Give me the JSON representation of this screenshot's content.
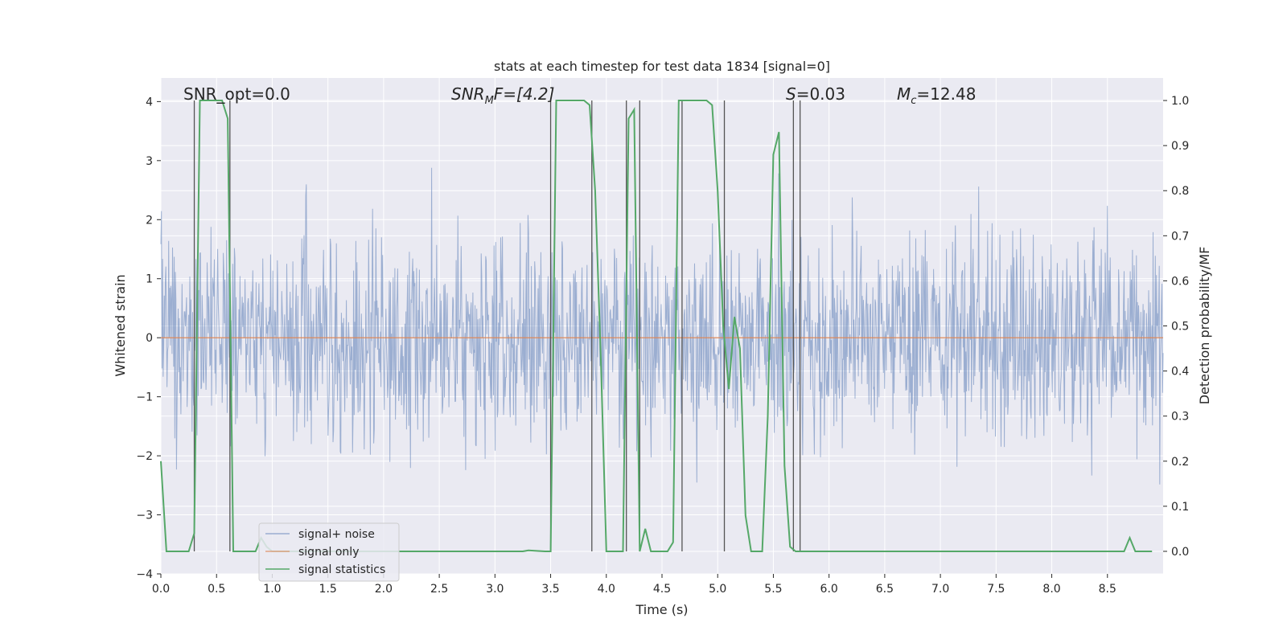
{
  "chart_data": {
    "type": "line",
    "title": "stats at each timestep for test data 1834 [signal=0]",
    "xlabel": "Time (s)",
    "ylabel": "Whitened strain",
    "ylabel_right": "Detection probability/MF",
    "xlim": [
      0.0,
      9.0
    ],
    "ylim": [
      -4.0,
      4.4
    ],
    "ylim_right": [
      -0.05,
      1.05
    ],
    "xticks": [
      "0.0",
      "0.5",
      "1.0",
      "1.5",
      "2.0",
      "2.5",
      "3.0",
      "3.5",
      "4.0",
      "4.5",
      "5.0",
      "5.5",
      "6.0",
      "6.5",
      "7.0",
      "7.5",
      "8.0",
      "8.5"
    ],
    "yticks": [
      "4",
      "3",
      "2",
      "1",
      "0",
      "−1",
      "−2",
      "−3",
      "−4"
    ],
    "yticks_right": [
      "1.0",
      "0.9",
      "0.8",
      "0.7",
      "0.6",
      "0.5",
      "0.4",
      "0.3",
      "0.2",
      "0.1",
      "0.0"
    ],
    "annotations": {
      "snr_opt": "SNR_opt=0.0",
      "snr_mf_base": "SNR",
      "snr_mf_sub": "M",
      "snr_mf_rest": "F=[4.2]",
      "s_label_italic": "S",
      "s_label_rest": "=0.03",
      "mc_base": "M",
      "mc_sub": "c",
      "mc_rest": "=12.48"
    },
    "legend": {
      "position": "lower-left",
      "entries": [
        "signal+ noise",
        "signal only",
        "signal statistics"
      ]
    },
    "series": [
      {
        "name": "signal+ noise",
        "axis": "left",
        "color": "#4c72b0",
        "description": "whitened noise samples, roughly within -3.6..3.6",
        "sample_count": 1800,
        "seed": 1834
      },
      {
        "name": "signal only",
        "axis": "left",
        "color": "#dd8452",
        "x": [
          0.0,
          9.0
        ],
        "values": [
          0.0,
          0.0
        ]
      },
      {
        "name": "signal statistics",
        "axis": "right",
        "color": "#55a868",
        "x": [
          0.0,
          0.05,
          0.1,
          0.15,
          0.2,
          0.25,
          0.3,
          0.35,
          0.4,
          0.45,
          0.5,
          0.55,
          0.6,
          0.65,
          0.7,
          0.75,
          0.8,
          0.85,
          0.9,
          0.95,
          1.0,
          1.5,
          2.0,
          2.5,
          3.0,
          3.25,
          3.3,
          3.45,
          3.5,
          3.55,
          3.6,
          3.7,
          3.8,
          3.85,
          3.9,
          3.95,
          4.0,
          4.05,
          4.1,
          4.15,
          4.2,
          4.25,
          4.3,
          4.35,
          4.4,
          4.45,
          4.5,
          4.55,
          4.6,
          4.65,
          4.7,
          4.75,
          4.8,
          4.85,
          4.9,
          4.95,
          5.0,
          5.05,
          5.1,
          5.15,
          5.2,
          5.25,
          5.3,
          5.35,
          5.4,
          5.45,
          5.5,
          5.55,
          5.6,
          5.65,
          5.7,
          5.75,
          5.8,
          5.85,
          5.9,
          5.95,
          6.0,
          6.5,
          7.0,
          7.5,
          8.0,
          8.5,
          8.65,
          8.7,
          8.75,
          8.8,
          8.9
        ],
        "values": [
          0.2,
          0.0,
          0.0,
          0.0,
          0.0,
          0.0,
          0.04,
          1.0,
          1.0,
          1.0,
          1.0,
          1.0,
          0.96,
          0.0,
          0.0,
          0.0,
          0.0,
          0.0,
          0.03,
          0.01,
          0.0,
          0.0,
          0.0,
          0.0,
          0.0,
          0.0,
          0.002,
          0.0,
          0.0,
          1.0,
          1.0,
          1.0,
          1.0,
          0.99,
          0.8,
          0.43,
          0.0,
          0.0,
          0.0,
          0.0,
          0.96,
          0.98,
          0.0,
          0.05,
          0.0,
          0.0,
          0.0,
          0.0,
          0.02,
          1.0,
          1.0,
          1.0,
          1.0,
          1.0,
          1.0,
          0.99,
          0.8,
          0.5,
          0.36,
          0.52,
          0.45,
          0.08,
          0.0,
          0.0,
          0.0,
          0.3,
          0.88,
          0.93,
          0.19,
          0.01,
          0.0,
          0.0,
          0.0,
          0.0,
          0.0,
          0.0,
          0.0,
          0.0,
          0.0,
          0.0,
          0.0,
          0.0,
          0.0,
          0.03,
          0.0,
          0.0,
          0.0
        ]
      }
    ],
    "vertical_markers": {
      "color": "#555555",
      "x": [
        0.3,
        0.62,
        3.5,
        3.87,
        4.18,
        4.3,
        4.68,
        5.06,
        5.68,
        5.74
      ]
    },
    "colors": {
      "plot_background": "#eaeaf2",
      "grid": "#ffffff"
    }
  }
}
